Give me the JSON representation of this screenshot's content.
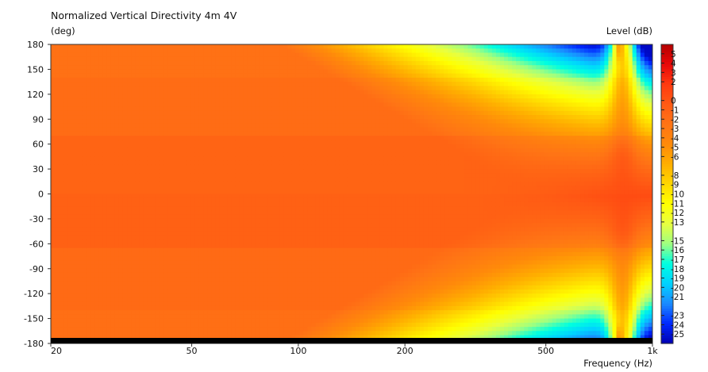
{
  "chart_data": {
    "type": "heatmap",
    "title": "Normalized Vertical Directivity 4m 4V",
    "ylabel": "(deg)",
    "xlabel": "Frequency  (Hz)",
    "colorbar_label": "Level  (dB)",
    "x_scale": "log",
    "xlim": [
      20,
      1000
    ],
    "ylim": [
      -180,
      180
    ],
    "x_ticks": [
      {
        "value": 20,
        "label": "20"
      },
      {
        "value": 50,
        "label": "50"
      },
      {
        "value": 100,
        "label": "100"
      },
      {
        "value": 200,
        "label": "200"
      },
      {
        "value": 500,
        "label": "500"
      },
      {
        "value": 1000,
        "label": "1k"
      }
    ],
    "y_ticks": [
      180,
      150,
      120,
      90,
      60,
      30,
      0,
      -30,
      -60,
      -90,
      -120,
      -150,
      -180
    ],
    "colorbar_ticks": [
      5,
      4,
      3,
      2,
      0,
      -1,
      -2,
      -3,
      -4,
      -5,
      -6,
      -8,
      -9,
      -10,
      -11,
      -12,
      -13,
      -15,
      -16,
      -17,
      -18,
      -19,
      -20,
      -21,
      -23,
      -24,
      -25
    ],
    "colorbar_range": [
      -26,
      6
    ],
    "palette": [
      "#0000b4",
      "#0028ff",
      "#1b8bff",
      "#00d2ff",
      "#00ffe0",
      "#a0ff80",
      "#e8ff40",
      "#ffff00",
      "#ffd700",
      "#ffae00",
      "#ff8a0a",
      "#ff7415",
      "#ff5a14",
      "#ff3a10",
      "#e80808",
      "#b40000"
    ]
  }
}
